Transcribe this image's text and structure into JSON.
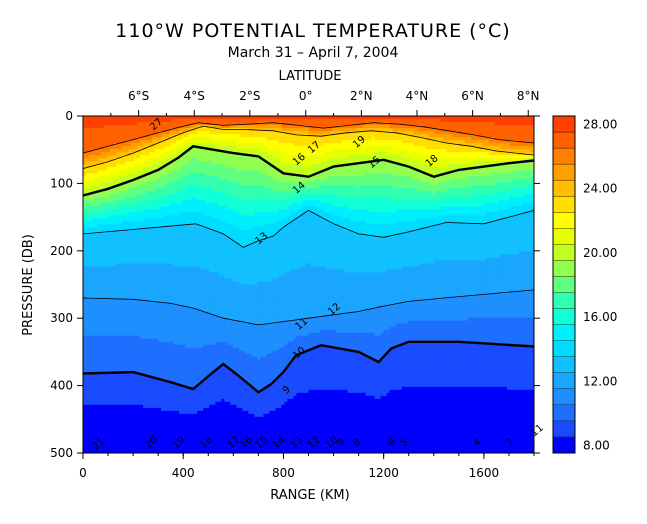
{
  "chart_data": {
    "type": "contour",
    "title": "110°W POTENTIAL TEMPERATURE (°C)",
    "subtitle": "March 31 – April 7, 2004",
    "top_axis": {
      "label": "LATITUDE",
      "ticks": [
        {
          "value": -6,
          "label": "6°S",
          "range_km": 222
        },
        {
          "value": -4,
          "label": "4°S",
          "range_km": 444
        },
        {
          "value": -2,
          "label": "2°S",
          "range_km": 666
        },
        {
          "value": 0,
          "label": "0°",
          "range_km": 889
        },
        {
          "value": 2,
          "label": "2°N",
          "range_km": 1111
        },
        {
          "value": 4,
          "label": "4°N",
          "range_km": 1333
        },
        {
          "value": 6,
          "label": "6°N",
          "range_km": 1555
        },
        {
          "value": 8,
          "label": "8°N",
          "range_km": 1777
        }
      ]
    },
    "x_axis": {
      "label": "RANGE (KM)",
      "range": [
        0,
        1800
      ],
      "ticks": [
        0,
        400,
        800,
        1200,
        1600
      ]
    },
    "y_axis": {
      "label": "PRESSURE (DB)",
      "range": [
        0,
        500
      ],
      "inverted": true,
      "ticks": [
        0,
        100,
        200,
        300,
        400,
        500
      ]
    },
    "colorbar": {
      "ticks": [
        "28.00",
        "24.00",
        "20.00",
        "16.00",
        "12.00",
        "8.00"
      ],
      "levels": [
        8,
        9,
        10,
        11,
        12,
        13,
        14,
        15,
        16,
        17,
        18,
        19,
        20,
        21,
        22,
        23,
        24,
        25,
        26,
        27,
        28
      ],
      "colors": [
        "#0000ff",
        "#1a4bff",
        "#1f6fff",
        "#1f8fff",
        "#1aa6ff",
        "#10c0ff",
        "#00dcff",
        "#00efff",
        "#10ffd8",
        "#30ffb0",
        "#60ff80",
        "#90ff50",
        "#c0ff20",
        "#e8ff00",
        "#ffff00",
        "#ffde00",
        "#ffbe00",
        "#ffa000",
        "#ff8000",
        "#ff6000",
        "#ff4000"
      ]
    },
    "contours": [
      {
        "value": 10,
        "label": "10",
        "bold": true,
        "points": [
          [
            0,
            382
          ],
          [
            200,
            380
          ],
          [
            350,
            395
          ],
          [
            440,
            405
          ],
          [
            520,
            380
          ],
          [
            560,
            368
          ],
          [
            620,
            385
          ],
          [
            700,
            410
          ],
          [
            750,
            398
          ],
          [
            800,
            380
          ],
          [
            850,
            355
          ],
          [
            950,
            340
          ],
          [
            1100,
            350
          ],
          [
            1180,
            365
          ],
          [
            1230,
            345
          ],
          [
            1300,
            335
          ],
          [
            1500,
            335
          ],
          [
            1800,
            342
          ]
        ]
      },
      {
        "value": 12,
        "label": "12",
        "bold": false,
        "points": [
          [
            0,
            270
          ],
          [
            200,
            272
          ],
          [
            350,
            278
          ],
          [
            440,
            285
          ],
          [
            560,
            300
          ],
          [
            700,
            310
          ],
          [
            800,
            305
          ],
          [
            900,
            300
          ],
          [
            1000,
            295
          ],
          [
            1100,
            290
          ],
          [
            1200,
            282
          ],
          [
            1300,
            275
          ],
          [
            1500,
            268
          ],
          [
            1800,
            258
          ]
        ]
      },
      {
        "value": 14,
        "label": "14",
        "bold": false,
        "points": [
          [
            0,
            175
          ],
          [
            150,
            170
          ],
          [
            300,
            165
          ],
          [
            450,
            160
          ],
          [
            560,
            175
          ],
          [
            640,
            195
          ],
          [
            700,
            185
          ],
          [
            760,
            178
          ],
          [
            800,
            165
          ],
          [
            900,
            140
          ],
          [
            1000,
            160
          ],
          [
            1100,
            175
          ],
          [
            1200,
            180
          ],
          [
            1300,
            172
          ],
          [
            1450,
            158
          ],
          [
            1600,
            160
          ],
          [
            1800,
            140
          ]
        ]
      },
      {
        "value": 20,
        "label": "20",
        "bold": true,
        "points": [
          [
            0,
            118
          ],
          [
            100,
            108
          ],
          [
            200,
            95
          ],
          [
            300,
            80
          ],
          [
            380,
            62
          ],
          [
            440,
            45
          ],
          [
            520,
            50
          ],
          [
            600,
            55
          ],
          [
            700,
            60
          ],
          [
            800,
            85
          ],
          [
            900,
            90
          ],
          [
            1000,
            75
          ],
          [
            1100,
            70
          ],
          [
            1200,
            65
          ],
          [
            1300,
            75
          ],
          [
            1400,
            90
          ],
          [
            1500,
            80
          ],
          [
            1600,
            75
          ],
          [
            1700,
            70
          ],
          [
            1800,
            66
          ]
        ]
      },
      {
        "value": 24,
        "label": "24",
        "bold": false,
        "points": [
          [
            0,
            78
          ],
          [
            100,
            68
          ],
          [
            200,
            55
          ],
          [
            300,
            40
          ],
          [
            400,
            25
          ],
          [
            480,
            15
          ],
          [
            560,
            20
          ],
          [
            650,
            20
          ],
          [
            760,
            22
          ],
          [
            850,
            28
          ],
          [
            950,
            30
          ],
          [
            1050,
            25
          ],
          [
            1150,
            22
          ],
          [
            1250,
            25
          ],
          [
            1350,
            32
          ],
          [
            1450,
            40
          ],
          [
            1550,
            45
          ],
          [
            1650,
            52
          ],
          [
            1800,
            58
          ]
        ]
      },
      {
        "value": 27,
        "label": "27",
        "bold": false,
        "points": [
          [
            0,
            55
          ],
          [
            100,
            45
          ],
          [
            200,
            35
          ],
          [
            300,
            25
          ],
          [
            380,
            17
          ],
          [
            460,
            10
          ],
          [
            560,
            14
          ],
          [
            660,
            12
          ],
          [
            760,
            10
          ],
          [
            860,
            14
          ],
          [
            960,
            18
          ],
          [
            1060,
            14
          ],
          [
            1160,
            10
          ],
          [
            1260,
            12
          ],
          [
            1360,
            16
          ],
          [
            1460,
            22
          ],
          [
            1560,
            28
          ],
          [
            1660,
            35
          ],
          [
            1800,
            40
          ]
        ]
      }
    ],
    "contour_annotations": [
      {
        "text": "27",
        "x": 300,
        "y": 16
      },
      {
        "text": "17",
        "x": 930,
        "y": 50
      },
      {
        "text": "19",
        "x": 1110,
        "y": 42
      },
      {
        "text": "18",
        "x": 1400,
        "y": 70
      },
      {
        "text": "16",
        "x": 870,
        "y": 68
      },
      {
        "text": "15",
        "x": 1170,
        "y": 72
      },
      {
        "text": "14",
        "x": 870,
        "y": 110
      },
      {
        "text": "13",
        "x": 720,
        "y": 185
      },
      {
        "text": "12",
        "x": 1010,
        "y": 290
      },
      {
        "text": "11",
        "x": 880,
        "y": 312
      },
      {
        "text": "10",
        "x": 870,
        "y": 355
      },
      {
        "text": "9",
        "x": 820,
        "y": 410
      },
      {
        "text": "21",
        "x": 70,
        "y": 490
      },
      {
        "text": "20",
        "x": 280,
        "y": 488
      },
      {
        "text": "19",
        "x": 390,
        "y": 488
      },
      {
        "text": "18",
        "x": 500,
        "y": 488
      },
      {
        "text": "17",
        "x": 610,
        "y": 488
      },
      {
        "text": "16",
        "x": 660,
        "y": 488
      },
      {
        "text": "15",
        "x": 720,
        "y": 488
      },
      {
        "text": "14",
        "x": 790,
        "y": 488
      },
      {
        "text": "13",
        "x": 860,
        "y": 488
      },
      {
        "text": "12",
        "x": 930,
        "y": 488
      },
      {
        "text": "10",
        "x": 1000,
        "y": 488
      },
      {
        "text": "9",
        "x": 1040,
        "y": 488
      },
      {
        "text": "8",
        "x": 1100,
        "y": 488
      },
      {
        "text": "6",
        "x": 1240,
        "y": 488
      },
      {
        "text": "5",
        "x": 1290,
        "y": 488
      },
      {
        "text": "4",
        "x": 1580,
        "y": 488
      },
      {
        "text": "3",
        "x": 1710,
        "y": 488
      },
      {
        "text": "11",
        "x": 1820,
        "y": 470
      }
    ]
  }
}
